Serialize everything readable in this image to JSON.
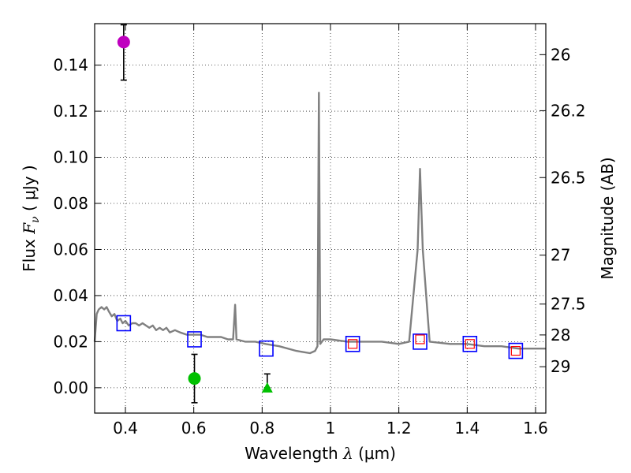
{
  "chart_data": {
    "type": "scatter",
    "xlabel": "Wavelength  λ (μm)",
    "xlabel_parts": {
      "prefix": "Wavelength  ",
      "var": "λ",
      "unit": " (μm)"
    },
    "ylabel": "Flux  Fν  ( μJy )",
    "ylabel_parts": {
      "prefix": "Flux  ",
      "var": "F",
      "sub": "ν",
      "unit": "  ( μJy )"
    },
    "y2label": "Magnitude (AB)",
    "xlim": [
      0.31,
      1.63
    ],
    "ylim": [
      -0.011,
      0.158
    ],
    "grid": true,
    "xticks": [
      {
        "v": 0.4,
        "label": "0.4"
      },
      {
        "v": 0.6,
        "label": "0.6"
      },
      {
        "v": 0.8,
        "label": "0.8"
      },
      {
        "v": 1.0,
        "label": "1"
      },
      {
        "v": 1.2,
        "label": "1.2"
      },
      {
        "v": 1.4,
        "label": "1.4"
      },
      {
        "v": 1.6,
        "label": "1.6"
      }
    ],
    "yticks": [
      {
        "v": 0.0,
        "label": "0.00"
      },
      {
        "v": 0.02,
        "label": "0.02"
      },
      {
        "v": 0.04,
        "label": "0.04"
      },
      {
        "v": 0.06,
        "label": "0.06"
      },
      {
        "v": 0.08,
        "label": "0.08"
      },
      {
        "v": 0.1,
        "label": "0.10"
      },
      {
        "v": 0.12,
        "label": "0.12"
      },
      {
        "v": 0.14,
        "label": "0.14"
      }
    ],
    "mag_ticks": [
      {
        "mag": 26,
        "label": "26"
      },
      {
        "mag": 26.2,
        "label": "26.2"
      },
      {
        "mag": 26.5,
        "label": "26.5"
      },
      {
        "mag": 27,
        "label": "27"
      },
      {
        "mag": 27.5,
        "label": "27.5"
      },
      {
        "mag": 28,
        "label": "28"
      },
      {
        "mag": 29,
        "label": "29"
      }
    ],
    "colors": {
      "sed": "#808080",
      "model_box": "#0000ff",
      "obs_box": "#ff0000",
      "magenta": "#bf00bf",
      "green": "#00c000",
      "errorbar": "#000000"
    },
    "series": [
      {
        "name": "model-sed",
        "kind": "line",
        "points": [
          [
            0.31,
            0.02
          ],
          [
            0.316,
            0.032
          ],
          [
            0.322,
            0.034
          ],
          [
            0.33,
            0.035
          ],
          [
            0.338,
            0.034
          ],
          [
            0.345,
            0.035
          ],
          [
            0.352,
            0.033
          ],
          [
            0.36,
            0.031
          ],
          [
            0.368,
            0.032
          ],
          [
            0.376,
            0.029
          ],
          [
            0.385,
            0.03
          ],
          [
            0.392,
            0.028
          ],
          [
            0.4,
            0.029
          ],
          [
            0.41,
            0.027
          ],
          [
            0.42,
            0.028
          ],
          [
            0.43,
            0.028
          ],
          [
            0.44,
            0.027
          ],
          [
            0.45,
            0.028
          ],
          [
            0.46,
            0.027
          ],
          [
            0.47,
            0.026
          ],
          [
            0.48,
            0.027
          ],
          [
            0.49,
            0.025
          ],
          [
            0.5,
            0.026
          ],
          [
            0.51,
            0.025
          ],
          [
            0.52,
            0.026
          ],
          [
            0.53,
            0.024
          ],
          [
            0.545,
            0.025
          ],
          [
            0.56,
            0.024
          ],
          [
            0.58,
            0.023
          ],
          [
            0.6,
            0.023
          ],
          [
            0.62,
            0.023
          ],
          [
            0.64,
            0.022
          ],
          [
            0.66,
            0.022
          ],
          [
            0.68,
            0.022
          ],
          [
            0.7,
            0.021
          ],
          [
            0.715,
            0.021
          ],
          [
            0.721,
            0.036
          ],
          [
            0.725,
            0.021
          ],
          [
            0.75,
            0.02
          ],
          [
            0.78,
            0.02
          ],
          [
            0.81,
            0.019
          ],
          [
            0.85,
            0.018
          ],
          [
            0.9,
            0.016
          ],
          [
            0.94,
            0.015
          ],
          [
            0.955,
            0.016
          ],
          [
            0.962,
            0.018
          ],
          [
            0.966,
            0.128
          ],
          [
            0.97,
            0.019
          ],
          [
            0.98,
            0.021
          ],
          [
            1.0,
            0.021
          ],
          [
            1.05,
            0.02
          ],
          [
            1.1,
            0.02
          ],
          [
            1.15,
            0.02
          ],
          [
            1.2,
            0.019
          ],
          [
            1.23,
            0.02
          ],
          [
            1.255,
            0.06
          ],
          [
            1.262,
            0.095
          ],
          [
            1.27,
            0.06
          ],
          [
            1.29,
            0.02
          ],
          [
            1.35,
            0.019
          ],
          [
            1.4,
            0.019
          ],
          [
            1.45,
            0.018
          ],
          [
            1.5,
            0.018
          ],
          [
            1.55,
            0.017
          ],
          [
            1.6,
            0.017
          ],
          [
            1.63,
            0.017
          ]
        ]
      },
      {
        "name": "model-bandpass-fluxes",
        "kind": "open-square",
        "color": "#0000ff",
        "points": [
          [
            0.395,
            0.028
          ],
          [
            0.602,
            0.021
          ],
          [
            0.812,
            0.017
          ],
          [
            1.065,
            0.019
          ],
          [
            1.262,
            0.02
          ],
          [
            1.408,
            0.019
          ],
          [
            1.542,
            0.016
          ]
        ]
      },
      {
        "name": "observed-bandpass-fluxes",
        "kind": "small-open-square",
        "color": "#ff0000",
        "points": [
          [
            1.065,
            0.019
          ],
          [
            1.262,
            0.021
          ],
          [
            1.408,
            0.019
          ],
          [
            1.542,
            0.016
          ]
        ]
      },
      {
        "name": "photometric-detections",
        "kind": "filled-circle",
        "points": [
          {
            "x": 0.395,
            "y": 0.15,
            "yerr_low": 0.0165,
            "yerr_high": 0.0075,
            "color": "#bf00bf"
          },
          {
            "x": 0.602,
            "y": 0.004,
            "yerr_low": 0.0105,
            "yerr_high": 0.0105,
            "color": "#00c000"
          }
        ]
      },
      {
        "name": "upper-limit",
        "kind": "filled-triangle",
        "points": [
          {
            "x": 0.815,
            "y": 0.0,
            "yerr_low": 0.0,
            "yerr_high": 0.006,
            "color": "#00c000"
          }
        ]
      }
    ]
  }
}
